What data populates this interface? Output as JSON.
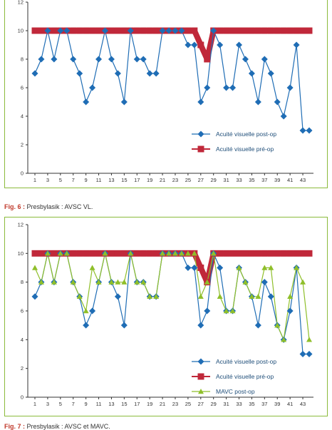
{
  "captions": [
    {
      "fig": "Fig. 6 :",
      "text": " Presbylasik : AVSC VL."
    },
    {
      "fig": "Fig. 7 :",
      "text": " Presbylasik : AVSC et MAVC."
    }
  ],
  "colors": {
    "post": "#1f6db5",
    "pre": "#c0283a",
    "mavc": "#8fbf2a",
    "axis": "#333333",
    "frame": "#8bbb3b"
  },
  "chart_data": [
    {
      "type": "line",
      "ylim": [
        0,
        12
      ],
      "yticks": [
        0,
        2,
        4,
        6,
        8,
        10,
        12
      ],
      "xticks": [
        1,
        3,
        5,
        7,
        9,
        11,
        13,
        15,
        17,
        19,
        21,
        23,
        25,
        27,
        29,
        31,
        33,
        35,
        37,
        39,
        41,
        43
      ],
      "x": [
        1,
        2,
        3,
        4,
        5,
        6,
        7,
        8,
        9,
        10,
        11,
        12,
        13,
        14,
        15,
        16,
        17,
        18,
        19,
        20,
        21,
        22,
        23,
        24,
        25,
        26,
        27,
        28,
        29,
        30,
        31,
        32,
        33,
        34,
        35,
        36,
        37,
        38,
        39,
        40,
        41,
        42,
        43,
        44
      ],
      "series": [
        {
          "name": "Acuité visuelle pré-op",
          "marker": "square",
          "values": [
            10,
            10,
            10,
            10,
            10,
            10,
            10,
            10,
            10,
            10,
            10,
            10,
            10,
            10,
            10,
            10,
            10,
            10,
            10,
            10,
            10,
            10,
            10,
            10,
            10,
            10,
            9,
            8,
            10,
            10,
            10,
            10,
            10,
            10,
            10,
            10,
            10,
            10,
            10,
            10,
            10,
            10,
            10,
            10
          ]
        },
        {
          "name": "Acuité visuelle post-op",
          "marker": "diamond",
          "values": [
            7,
            8,
            10,
            8,
            10,
            10,
            8,
            7,
            5,
            6,
            8,
            10,
            8,
            7,
            5,
            10,
            8,
            8,
            7,
            7,
            10,
            10,
            10,
            10,
            9,
            9,
            5,
            6,
            10,
            9,
            6,
            6,
            9,
            8,
            7,
            5,
            8,
            7,
            5,
            4,
            6,
            9,
            3,
            3
          ]
        }
      ],
      "legend": [
        "Acuité visuelle post-op",
        "Acuité visuelle pré-op"
      ]
    },
    {
      "type": "line",
      "ylim": [
        0,
        12
      ],
      "yticks": [
        0,
        2,
        4,
        6,
        8,
        10,
        12
      ],
      "xticks": [
        1,
        3,
        5,
        7,
        9,
        11,
        13,
        15,
        17,
        19,
        21,
        23,
        25,
        27,
        29,
        31,
        33,
        35,
        37,
        39,
        41,
        43
      ],
      "x": [
        1,
        2,
        3,
        4,
        5,
        6,
        7,
        8,
        9,
        10,
        11,
        12,
        13,
        14,
        15,
        16,
        17,
        18,
        19,
        20,
        21,
        22,
        23,
        24,
        25,
        26,
        27,
        28,
        29,
        30,
        31,
        32,
        33,
        34,
        35,
        36,
        37,
        38,
        39,
        40,
        41,
        42,
        43,
        44
      ],
      "series": [
        {
          "name": "Acuité visuelle pré-op",
          "marker": "square",
          "values": [
            10,
            10,
            10,
            10,
            10,
            10,
            10,
            10,
            10,
            10,
            10,
            10,
            10,
            10,
            10,
            10,
            10,
            10,
            10,
            10,
            10,
            10,
            10,
            10,
            10,
            10,
            9,
            8,
            10,
            10,
            10,
            10,
            10,
            10,
            10,
            10,
            10,
            10,
            10,
            10,
            10,
            10,
            10,
            10
          ]
        },
        {
          "name": "Acuité visuelle post-op",
          "marker": "diamond",
          "values": [
            7,
            8,
            10,
            8,
            10,
            10,
            8,
            7,
            5,
            6,
            8,
            10,
            8,
            7,
            5,
            10,
            8,
            8,
            7,
            7,
            10,
            10,
            10,
            10,
            9,
            9,
            5,
            6,
            10,
            9,
            6,
            6,
            9,
            8,
            7,
            5,
            8,
            7,
            5,
            4,
            6,
            9,
            3,
            3
          ]
        },
        {
          "name": "MAVC post-op",
          "marker": "triangle",
          "values": [
            9,
            8,
            10,
            8,
            10,
            10,
            8,
            7,
            6,
            9,
            8,
            10,
            8,
            8,
            8,
            10,
            8,
            8,
            7,
            7,
            10,
            10,
            10,
            10,
            10,
            10,
            7,
            8,
            10,
            7,
            6,
            6,
            9,
            8,
            7,
            7,
            9,
            9,
            5,
            4,
            7,
            9,
            8,
            4
          ]
        }
      ],
      "legend": [
        "Acuité visuelle post-op",
        "Acuité visuelle pré-op",
        "MAVC post-op"
      ]
    }
  ]
}
